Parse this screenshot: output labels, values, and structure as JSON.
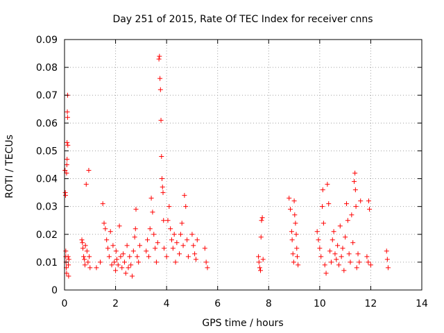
{
  "chart_data": {
    "type": "scatter",
    "title": "Day 251 of 2015, Rate Of TEC Index for receiver cnns",
    "xlabel": "GPS time / hours",
    "ylabel": "ROTI / TECUs",
    "xlim": [
      0,
      14
    ],
    "ylim": [
      0,
      0.09
    ],
    "x_ticks": [
      0,
      2,
      4,
      6,
      8,
      10,
      12,
      14
    ],
    "y_ticks": [
      0,
      0.01,
      0.02,
      0.03,
      0.04,
      0.05,
      0.06,
      0.07,
      0.08,
      0.09
    ],
    "x_tick_labels": [
      "0",
      "2",
      "4",
      "6",
      "8",
      "10",
      "12",
      "14"
    ],
    "y_tick_labels": [
      "0",
      "0.01",
      "0.02",
      "0.03",
      "0.04",
      "0.05",
      "0.06",
      "0.07",
      "0.08",
      "0.09"
    ],
    "grid": true,
    "marker": "+",
    "color": "#ff0000",
    "series": [
      {
        "name": "ROTI",
        "points": [
          [
            0.02,
            0.043
          ],
          [
            0.03,
            0.035
          ],
          [
            0.04,
            0.034
          ],
          [
            0.05,
            0.014
          ],
          [
            0.05,
            0.012
          ],
          [
            0.06,
            0.01
          ],
          [
            0.07,
            0.008
          ],
          [
            0.08,
            0.006
          ],
          [
            0.08,
            0.042
          ],
          [
            0.09,
            0.045
          ],
          [
            0.1,
            0.047
          ],
          [
            0.1,
            0.053
          ],
          [
            0.11,
            0.064
          ],
          [
            0.12,
            0.07
          ],
          [
            0.12,
            0.062
          ],
          [
            0.13,
            0.052
          ],
          [
            0.14,
            0.012
          ],
          [
            0.15,
            0.009
          ],
          [
            0.16,
            0.005
          ],
          [
            0.17,
            0.011
          ],
          [
            0.68,
            0.018
          ],
          [
            0.7,
            0.017
          ],
          [
            0.72,
            0.015
          ],
          [
            0.75,
            0.012
          ],
          [
            0.78,
            0.011
          ],
          [
            0.8,
            0.009
          ],
          [
            0.82,
            0.016
          ],
          [
            0.85,
            0.038
          ],
          [
            0.88,
            0.014
          ],
          [
            0.92,
            0.01
          ],
          [
            0.95,
            0.043
          ],
          [
            0.97,
            0.012
          ],
          [
            1.0,
            0.008
          ],
          [
            1.25,
            0.008
          ],
          [
            1.4,
            0.01
          ],
          [
            1.5,
            0.031
          ],
          [
            1.55,
            0.024
          ],
          [
            1.6,
            0.022
          ],
          [
            1.65,
            0.018
          ],
          [
            1.7,
            0.015
          ],
          [
            1.75,
            0.012
          ],
          [
            1.8,
            0.021
          ],
          [
            1.85,
            0.009
          ],
          [
            1.9,
            0.016
          ],
          [
            1.95,
            0.01
          ],
          [
            2.0,
            0.007
          ],
          [
            2.02,
            0.014
          ],
          [
            2.05,
            0.011
          ],
          [
            2.1,
            0.009
          ],
          [
            2.15,
            0.023
          ],
          [
            2.2,
            0.012
          ],
          [
            2.25,
            0.008
          ],
          [
            2.3,
            0.013
          ],
          [
            2.35,
            0.01
          ],
          [
            2.4,
            0.006
          ],
          [
            2.45,
            0.016
          ],
          [
            2.5,
            0.008
          ],
          [
            2.55,
            0.012
          ],
          [
            2.6,
            0.009
          ],
          [
            2.65,
            0.005
          ],
          [
            2.7,
            0.014
          ],
          [
            2.75,
            0.019
          ],
          [
            2.78,
            0.022
          ],
          [
            2.8,
            0.029
          ],
          [
            2.85,
            0.012
          ],
          [
            2.9,
            0.01
          ],
          [
            2.95,
            0.016
          ],
          [
            3.2,
            0.014
          ],
          [
            3.25,
            0.018
          ],
          [
            3.3,
            0.012
          ],
          [
            3.35,
            0.022
          ],
          [
            3.4,
            0.033
          ],
          [
            3.45,
            0.028
          ],
          [
            3.5,
            0.02
          ],
          [
            3.55,
            0.015
          ],
          [
            3.6,
            0.01
          ],
          [
            3.65,
            0.017
          ],
          [
            3.7,
            0.083
          ],
          [
            3.72,
            0.084
          ],
          [
            3.74,
            0.076
          ],
          [
            3.76,
            0.072
          ],
          [
            3.78,
            0.061
          ],
          [
            3.8,
            0.048
          ],
          [
            3.82,
            0.04
          ],
          [
            3.84,
            0.037
          ],
          [
            3.86,
            0.035
          ],
          [
            3.88,
            0.025
          ],
          [
            3.9,
            0.015
          ],
          [
            4.0,
            0.012
          ],
          [
            4.05,
            0.025
          ],
          [
            4.1,
            0.03
          ],
          [
            4.15,
            0.022
          ],
          [
            4.2,
            0.018
          ],
          [
            4.25,
            0.015
          ],
          [
            4.3,
            0.02
          ],
          [
            4.35,
            0.01
          ],
          [
            4.4,
            0.017
          ],
          [
            4.5,
            0.013
          ],
          [
            4.55,
            0.02
          ],
          [
            4.6,
            0.024
          ],
          [
            4.65,
            0.016
          ],
          [
            4.7,
            0.034
          ],
          [
            4.75,
            0.03
          ],
          [
            4.8,
            0.018
          ],
          [
            4.85,
            0.012
          ],
          [
            5.0,
            0.02
          ],
          [
            5.05,
            0.016
          ],
          [
            5.1,
            0.013
          ],
          [
            5.15,
            0.011
          ],
          [
            5.2,
            0.018
          ],
          [
            5.5,
            0.015
          ],
          [
            5.55,
            0.01
          ],
          [
            5.6,
            0.008
          ],
          [
            7.6,
            0.012
          ],
          [
            7.62,
            0.01
          ],
          [
            7.65,
            0.008
          ],
          [
            7.68,
            0.007
          ],
          [
            7.7,
            0.019
          ],
          [
            7.72,
            0.025
          ],
          [
            7.75,
            0.026
          ],
          [
            7.78,
            0.011
          ],
          [
            8.8,
            0.033
          ],
          [
            8.85,
            0.029
          ],
          [
            8.9,
            0.021
          ],
          [
            8.92,
            0.018
          ],
          [
            8.95,
            0.013
          ],
          [
            8.98,
            0.01
          ],
          [
            9.0,
            0.032
          ],
          [
            9.02,
            0.027
          ],
          [
            9.05,
            0.024
          ],
          [
            9.08,
            0.02
          ],
          [
            9.1,
            0.015
          ],
          [
            9.12,
            0.012
          ],
          [
            9.15,
            0.009
          ],
          [
            9.9,
            0.021
          ],
          [
            9.95,
            0.018
          ],
          [
            10.0,
            0.015
          ],
          [
            10.05,
            0.012
          ],
          [
            10.1,
            0.03
          ],
          [
            10.12,
            0.036
          ],
          [
            10.15,
            0.024
          ],
          [
            10.2,
            0.009
          ],
          [
            10.25,
            0.006
          ],
          [
            10.3,
            0.038
          ],
          [
            10.35,
            0.031
          ],
          [
            10.4,
            0.014
          ],
          [
            10.45,
            0.01
          ],
          [
            10.5,
            0.018
          ],
          [
            10.55,
            0.021
          ],
          [
            10.6,
            0.013
          ],
          [
            10.65,
            0.011
          ],
          [
            10.7,
            0.016
          ],
          [
            10.75,
            0.009
          ],
          [
            10.8,
            0.023
          ],
          [
            10.85,
            0.012
          ],
          [
            10.9,
            0.015
          ],
          [
            10.95,
            0.007
          ],
          [
            11.0,
            0.019
          ],
          [
            11.05,
            0.031
          ],
          [
            11.1,
            0.025
          ],
          [
            11.15,
            0.013
          ],
          [
            11.2,
            0.01
          ],
          [
            11.25,
            0.027
          ],
          [
            11.3,
            0.017
          ],
          [
            11.35,
            0.039
          ],
          [
            11.38,
            0.042
          ],
          [
            11.4,
            0.036
          ],
          [
            11.42,
            0.03
          ],
          [
            11.45,
            0.008
          ],
          [
            11.5,
            0.013
          ],
          [
            11.55,
            0.01
          ],
          [
            11.6,
            0.032
          ],
          [
            11.85,
            0.012
          ],
          [
            11.9,
            0.01
          ],
          [
            11.92,
            0.032
          ],
          [
            11.95,
            0.029
          ],
          [
            12.0,
            0.009
          ],
          [
            12.62,
            0.014
          ],
          [
            12.65,
            0.011
          ],
          [
            12.68,
            0.008
          ]
        ]
      }
    ]
  }
}
